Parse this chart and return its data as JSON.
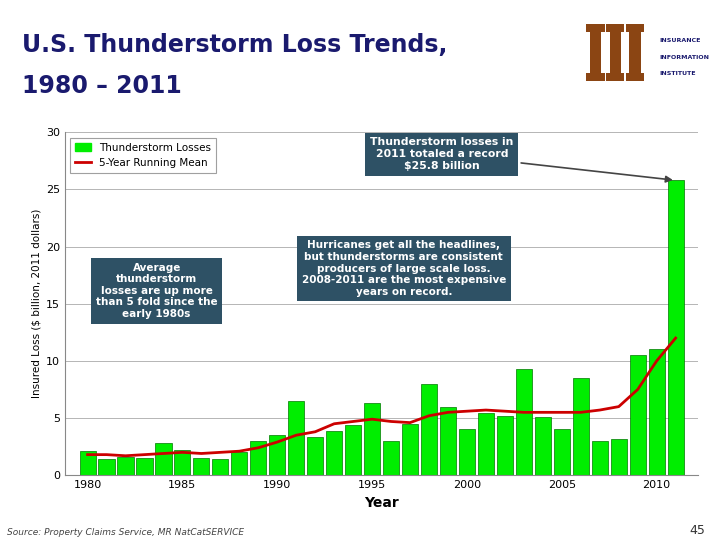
{
  "title_line1": "U.S. Thunderstorm Loss Trends,",
  "title_line2": "1980 – 2011",
  "ylabel": "Insured Loss ($ billion, 2011 dollars)",
  "xlabel": "Year",
  "background_title": "#b8cdd8",
  "background_chart": "#ffffff",
  "bar_color": "#00ee00",
  "bar_edge_color": "#007700",
  "line_color": "#cc0000",
  "ylim": [
    0,
    30
  ],
  "yticks": [
    0,
    5,
    10,
    15,
    20,
    25,
    30
  ],
  "years": [
    1980,
    1981,
    1982,
    1983,
    1984,
    1985,
    1986,
    1987,
    1988,
    1989,
    1990,
    1991,
    1992,
    1993,
    1994,
    1995,
    1996,
    1997,
    1998,
    1999,
    2000,
    2001,
    2002,
    2003,
    2004,
    2005,
    2006,
    2007,
    2008,
    2009,
    2010,
    2011
  ],
  "losses": [
    2.1,
    1.4,
    1.6,
    1.5,
    2.8,
    2.2,
    1.5,
    1.4,
    2.0,
    3.0,
    3.5,
    6.5,
    3.3,
    3.9,
    4.4,
    6.3,
    3.0,
    4.5,
    8.0,
    6.0,
    4.0,
    5.4,
    5.2,
    9.3,
    5.1,
    4.0,
    8.5,
    3.0,
    3.2,
    10.5,
    11.0,
    25.8
  ],
  "running_mean": [
    1.8,
    1.8,
    1.7,
    1.8,
    1.9,
    2.0,
    1.9,
    2.0,
    2.1,
    2.4,
    2.9,
    3.5,
    3.8,
    4.5,
    4.7,
    4.9,
    4.7,
    4.6,
    5.2,
    5.5,
    5.6,
    5.7,
    5.6,
    5.5,
    5.5,
    5.5,
    5.5,
    5.7,
    6.0,
    7.5,
    10.0,
    12.0
  ],
  "annotation1_text": "Thunderstorm losses in\n2011 totaled a record\n$25.8 billion",
  "annotation2_text": "Hurricanes get all the headlines,\nbut thunderstorms are consistent\nproducers of large scale loss.\n2008-2011 are the most expensive\nyears on record.",
  "annotation3_text": "Average\nthunderstorm\nlosses are up more\nthan 5 fold since the\nearly 1980s",
  "source_text": "Source: Property Claims Service, MR NatCatSERVICE",
  "page_number": "45",
  "legend_label_bars": "Thunderstorm Losses",
  "legend_label_line": "5-Year Running Mean",
  "annotation_bg_color": "#2e5165",
  "annotation_text_color": "#ffffff",
  "title_color": "#1a1a6e",
  "grid_color": "#aaaaaa",
  "xtick_labels": [
    "1980",
    "1985",
    "1990",
    "1995",
    "2000",
    "2005",
    "2010"
  ],
  "xtick_positions": [
    1980,
    1985,
    1990,
    1995,
    2000,
    2005,
    2010
  ]
}
